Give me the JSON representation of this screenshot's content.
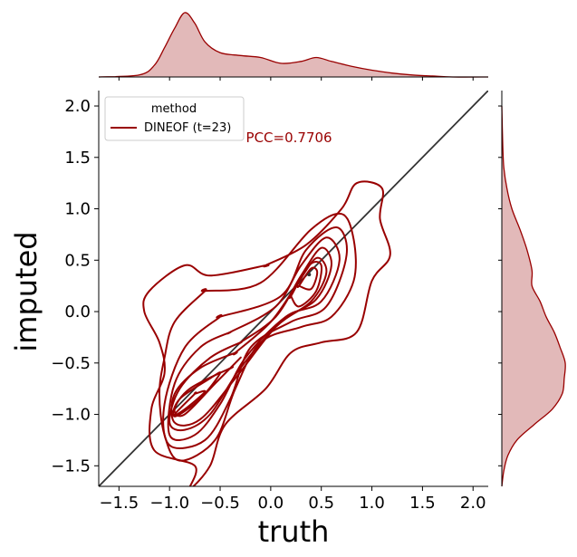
{
  "chart_data": {
    "type": "kde_joint_plot",
    "xlabel": "truth",
    "ylabel": "imputed",
    "xlim": [
      -1.7,
      2.15
    ],
    "ylim": [
      -1.7,
      2.15
    ],
    "x_ticks": [
      "−1.5",
      "−1.0",
      "−0.5",
      "0.0",
      "0.5",
      "1.0",
      "1.5",
      "2.0"
    ],
    "y_ticks": [
      "−1.5",
      "−1.0",
      "−0.5",
      "0.0",
      "0.5",
      "1.0",
      "1.5",
      "2.0"
    ],
    "x_tick_values": [
      -1.5,
      -1.0,
      -0.5,
      0.0,
      0.5,
      1.0,
      1.5,
      2.0
    ],
    "y_tick_values": [
      -1.5,
      -1.0,
      -0.5,
      0.0,
      0.5,
      1.0,
      1.5,
      2.0
    ],
    "legend": {
      "title": "method",
      "position": "upper-left",
      "entries": [
        {
          "label": "DINEOF (t=23)",
          "color": "#990000"
        }
      ]
    },
    "annotation": {
      "text": "PCC=0.7706",
      "color": "#990000",
      "x": -0.2,
      "y": 1.7
    },
    "identity_line": {
      "from": [
        -1.7,
        -1.7
      ],
      "to": [
        2.15,
        2.15
      ],
      "color": "#333333"
    },
    "series": [
      {
        "name": "DINEOF (t=23)",
        "color": "#990000",
        "fill_color": "#e2b9b9",
        "contours": [
          [
            [
              -0.05,
              0.45
            ],
            [
              0.35,
              0.65
            ],
            [
              0.7,
              1.0
            ],
            [
              0.85,
              1.25
            ],
            [
              1.1,
              1.2
            ],
            [
              1.08,
              0.9
            ],
            [
              1.18,
              0.55
            ],
            [
              1.0,
              0.3
            ],
            [
              0.85,
              -0.2
            ],
            [
              0.5,
              -0.3
            ],
            [
              0.2,
              -0.4
            ],
            [
              -0.05,
              -0.75
            ],
            [
              -0.45,
              -1.1
            ],
            [
              -0.6,
              -1.5
            ],
            [
              -0.8,
              -1.72
            ],
            [
              -0.75,
              -1.5
            ],
            [
              -1.15,
              -1.35
            ],
            [
              -1.18,
              -0.95
            ],
            [
              -1.05,
              -0.6
            ],
            [
              -1.1,
              -0.3
            ],
            [
              -1.25,
              0.0
            ],
            [
              -1.2,
              0.2
            ],
            [
              -0.85,
              0.45
            ],
            [
              -0.6,
              0.35
            ],
            [
              -0.05,
              0.45
            ]
          ],
          [
            [
              -0.65,
              0.2
            ],
            [
              -0.1,
              0.28
            ],
            [
              0.4,
              0.8
            ],
            [
              0.7,
              0.95
            ],
            [
              0.82,
              0.7
            ],
            [
              0.82,
              0.3
            ],
            [
              0.6,
              -0.05
            ],
            [
              0.3,
              -0.15
            ],
            [
              -0.1,
              -0.3
            ],
            [
              -0.35,
              -0.75
            ],
            [
              -0.55,
              -1.25
            ],
            [
              -0.9,
              -1.45
            ],
            [
              -1.05,
              -1.2
            ],
            [
              -1.1,
              -0.8
            ],
            [
              -1.05,
              -0.45
            ],
            [
              -0.95,
              -0.1
            ],
            [
              -0.65,
              0.2
            ]
          ],
          [
            [
              -0.5,
              -0.05
            ],
            [
              0.1,
              0.15
            ],
            [
              0.35,
              0.6
            ],
            [
              0.65,
              0.82
            ],
            [
              0.75,
              0.55
            ],
            [
              0.55,
              0.05
            ],
            [
              0.2,
              -0.1
            ],
            [
              -0.2,
              -0.35
            ],
            [
              -0.4,
              -0.85
            ],
            [
              -0.65,
              -1.25
            ],
            [
              -1.0,
              -1.3
            ],
            [
              -1.05,
              -0.9
            ],
            [
              -0.85,
              -0.35
            ],
            [
              -0.5,
              -0.05
            ]
          ],
          [
            [
              -0.4,
              -0.2
            ],
            [
              0.05,
              0.05
            ],
            [
              0.3,
              0.45
            ],
            [
              0.55,
              0.72
            ],
            [
              0.68,
              0.5
            ],
            [
              0.5,
              0.1
            ],
            [
              0.15,
              -0.05
            ],
            [
              -0.25,
              -0.45
            ],
            [
              -0.5,
              -0.9
            ],
            [
              -0.75,
              -1.2
            ],
            [
              -1.0,
              -1.2
            ],
            [
              -0.95,
              -0.7
            ],
            [
              -0.7,
              -0.35
            ],
            [
              -0.4,
              -0.2
            ]
          ],
          [
            [
              -0.3,
              -0.3
            ],
            [
              0.05,
              -0.05
            ],
            [
              0.3,
              0.35
            ],
            [
              0.5,
              0.62
            ],
            [
              0.6,
              0.45
            ],
            [
              0.45,
              0.12
            ],
            [
              0.1,
              -0.1
            ],
            [
              -0.3,
              -0.55
            ],
            [
              -0.6,
              -1.0
            ],
            [
              -0.85,
              -1.15
            ],
            [
              -1.0,
              -1.08
            ],
            [
              -0.9,
              -0.75
            ],
            [
              -0.6,
              -0.45
            ],
            [
              -0.3,
              -0.3
            ]
          ],
          [
            [
              -0.35,
              -0.4
            ],
            [
              0.0,
              -0.1
            ],
            [
              0.25,
              0.25
            ],
            [
              0.45,
              0.52
            ],
            [
              0.55,
              0.38
            ],
            [
              0.4,
              0.1
            ],
            [
              0.05,
              -0.15
            ],
            [
              -0.35,
              -0.65
            ],
            [
              -0.7,
              -1.05
            ],
            [
              -0.95,
              -1.08
            ],
            [
              -0.95,
              -0.8
            ],
            [
              -0.7,
              -0.55
            ],
            [
              -0.35,
              -0.4
            ]
          ],
          [
            [
              0.2,
              0.15
            ],
            [
              0.38,
              0.45
            ],
            [
              0.5,
              0.45
            ],
            [
              0.45,
              0.2
            ],
            [
              0.28,
              0.05
            ],
            [
              0.2,
              0.15
            ]
          ],
          [
            [
              0.28,
              0.25
            ],
            [
              0.4,
              0.42
            ],
            [
              0.46,
              0.38
            ],
            [
              0.4,
              0.22
            ],
            [
              0.28,
              0.25
            ]
          ],
          [
            [
              -0.4,
              -0.55
            ],
            [
              -0.3,
              -0.45
            ],
            [
              -0.55,
              -0.7
            ],
            [
              -0.85,
              -1.0
            ],
            [
              -0.95,
              -0.95
            ],
            [
              -0.8,
              -0.75
            ],
            [
              -0.4,
              -0.55
            ]
          ],
          [
            [
              -0.6,
              -0.65
            ],
            [
              -0.5,
              -0.6
            ],
            [
              -0.7,
              -0.85
            ],
            [
              -0.95,
              -1.02
            ],
            [
              -0.9,
              -0.85
            ],
            [
              -0.6,
              -0.65
            ]
          ],
          [
            [
              -0.75,
              -0.8
            ],
            [
              -0.65,
              -0.78
            ],
            [
              -0.85,
              -0.95
            ],
            [
              -0.95,
              -1.0
            ],
            [
              -0.75,
              -0.8
            ]
          ]
        ],
        "marginal_x": {
          "x": [
            -1.7,
            -1.3,
            -1.15,
            -1.05,
            -0.95,
            -0.85,
            -0.75,
            -0.65,
            -0.5,
            -0.3,
            -0.1,
            0.1,
            0.3,
            0.45,
            0.6,
            0.8,
            1.0,
            1.2,
            1.4,
            1.6,
            1.8,
            2.15
          ],
          "density": [
            0.0,
            0.02,
            0.12,
            0.3,
            0.5,
            0.66,
            0.55,
            0.36,
            0.25,
            0.22,
            0.2,
            0.14,
            0.16,
            0.2,
            0.16,
            0.11,
            0.07,
            0.04,
            0.02,
            0.01,
            0.0,
            0.0
          ]
        },
        "marginal_y": {
          "y": [
            -1.7,
            -1.55,
            -1.4,
            -1.25,
            -1.1,
            -0.95,
            -0.8,
            -0.65,
            -0.5,
            -0.35,
            -0.2,
            -0.05,
            0.1,
            0.25,
            0.4,
            0.6,
            0.8,
            1.0,
            1.2,
            1.4,
            1.6,
            2.0
          ],
          "density": [
            0.0,
            0.02,
            0.06,
            0.15,
            0.32,
            0.5,
            0.6,
            0.62,
            0.63,
            0.58,
            0.52,
            0.44,
            0.38,
            0.3,
            0.3,
            0.25,
            0.18,
            0.1,
            0.05,
            0.02,
            0.01,
            0.0
          ]
        }
      }
    ]
  }
}
